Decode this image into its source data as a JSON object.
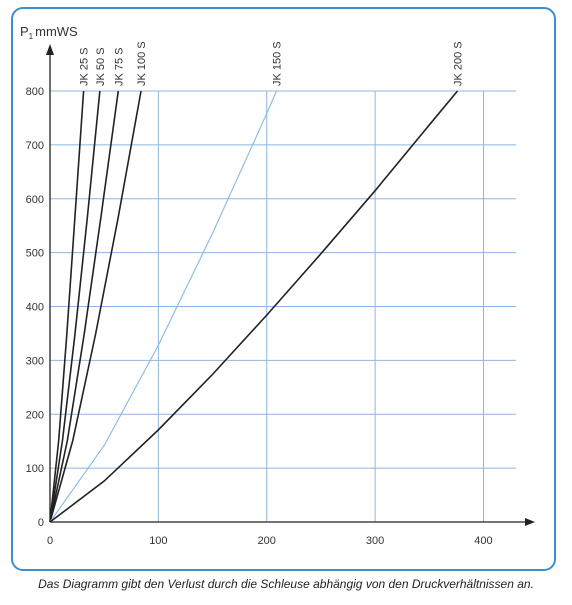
{
  "chart_data": {
    "type": "line",
    "y_label": {
      "symbol": "P",
      "subscript": "1",
      "unit": "mmWS"
    },
    "caption": "Das Diagramm gibt den Verlust durch die Schleuse abhängig von den Druckverhältnissen an.",
    "xlim": [
      0,
      430
    ],
    "ylim": [
      0,
      800
    ],
    "xticks": [
      0,
      100,
      200,
      300,
      400
    ],
    "yticks": [
      0,
      100,
      200,
      300,
      400,
      500,
      600,
      700,
      800
    ],
    "grid": true,
    "grid_color": "#8fb6de",
    "series": [
      {
        "name": "JK 25 S",
        "color": "#222222",
        "x": [
          0,
          8,
          15.5,
          23,
          31
        ],
        "values": [
          0,
          151,
          348,
          566,
          800
        ]
      },
      {
        "name": "JK 50 S",
        "color": "#222222",
        "x": [
          0,
          11.5,
          23,
          34.5,
          46
        ],
        "values": [
          0,
          151,
          348,
          566,
          800
        ]
      },
      {
        "name": "JK 75 S",
        "color": "#222222",
        "x": [
          0,
          16,
          31.5,
          47,
          63
        ],
        "values": [
          0,
          151,
          348,
          566,
          800
        ]
      },
      {
        "name": "JK 100 S",
        "color": "#222222",
        "x": [
          0,
          21,
          42,
          63,
          84
        ],
        "values": [
          0,
          151,
          348,
          566,
          800
        ]
      },
      {
        "name": "JK 150 S",
        "color": "#8ab8e0",
        "x": [
          0,
          50,
          100,
          150,
          200,
          209
        ],
        "values": [
          0,
          142,
          328,
          536,
          758,
          800
        ]
      },
      {
        "name": "JK 200 S",
        "color": "#222222",
        "x": [
          0,
          50,
          100,
          150,
          200,
          250,
          300,
          350,
          376
        ],
        "values": [
          0,
          76,
          171,
          274,
          384,
          498,
          615,
          737,
          800
        ]
      }
    ]
  }
}
